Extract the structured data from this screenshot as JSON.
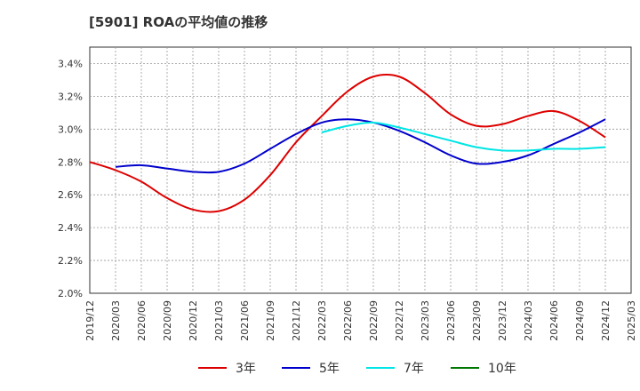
{
  "title": "[5901]  ROAの平均値の推移",
  "chart_data": {
    "type": "line",
    "title": "[5901]  ROAの平均値の推移",
    "xlabel": "",
    "ylabel": "",
    "ylim": [
      2.0,
      3.5
    ],
    "y_ticks": [
      "2.0%",
      "2.2%",
      "2.4%",
      "2.6%",
      "2.8%",
      "3.0%",
      "3.2%",
      "3.4%"
    ],
    "y_tick_values": [
      2.0,
      2.2,
      2.4,
      2.6,
      2.8,
      3.0,
      3.2,
      3.4
    ],
    "x_ticks": [
      "2019/12",
      "2020/03",
      "2020/06",
      "2020/09",
      "2020/12",
      "2021/03",
      "2021/06",
      "2021/09",
      "2021/12",
      "2022/03",
      "2022/06",
      "2022/09",
      "2022/12",
      "2023/03",
      "2023/06",
      "2023/09",
      "2023/12",
      "2024/03",
      "2024/06",
      "2024/09",
      "2024/12",
      "2025/03"
    ],
    "grid": true,
    "legend_position": "bottom",
    "series": [
      {
        "name": "3年",
        "color": "#dd0000",
        "x": [
          "2019/12",
          "2020/03",
          "2020/06",
          "2020/09",
          "2020/12",
          "2021/03",
          "2021/06",
          "2021/09",
          "2021/12",
          "2022/03",
          "2022/06",
          "2022/09",
          "2022/12",
          "2023/03",
          "2023/06",
          "2023/09",
          "2023/12",
          "2024/03",
          "2024/06",
          "2024/09",
          "2024/12"
        ],
        "values": [
          2.8,
          2.75,
          2.68,
          2.58,
          2.51,
          2.5,
          2.57,
          2.72,
          2.92,
          3.08,
          3.23,
          3.32,
          3.32,
          3.22,
          3.09,
          3.02,
          3.03,
          3.08,
          3.11,
          3.05,
          2.95
        ]
      },
      {
        "name": "5年",
        "color": "#0000cc",
        "x": [
          "2020/03",
          "2020/06",
          "2020/09",
          "2020/12",
          "2021/03",
          "2021/06",
          "2021/09",
          "2021/12",
          "2022/03",
          "2022/06",
          "2022/09",
          "2022/12",
          "2023/03",
          "2023/06",
          "2023/09",
          "2023/12",
          "2024/03",
          "2024/06",
          "2024/09",
          "2024/12"
        ],
        "values": [
          2.77,
          2.78,
          2.76,
          2.74,
          2.74,
          2.79,
          2.88,
          2.97,
          3.04,
          3.06,
          3.04,
          2.99,
          2.92,
          2.84,
          2.79,
          2.8,
          2.84,
          2.91,
          2.98,
          3.06
        ]
      },
      {
        "name": "7年",
        "color": "#00e5e5",
        "x": [
          "2022/03",
          "2022/06",
          "2022/09",
          "2022/12",
          "2023/03",
          "2023/06",
          "2023/09",
          "2023/12",
          "2024/03",
          "2024/06",
          "2024/09",
          "2024/12"
        ],
        "values": [
          2.98,
          3.02,
          3.04,
          3.01,
          2.97,
          2.93,
          2.89,
          2.87,
          2.87,
          2.88,
          2.88,
          2.89
        ]
      },
      {
        "name": "10年",
        "color": "#007700",
        "x": [],
        "values": []
      }
    ]
  }
}
